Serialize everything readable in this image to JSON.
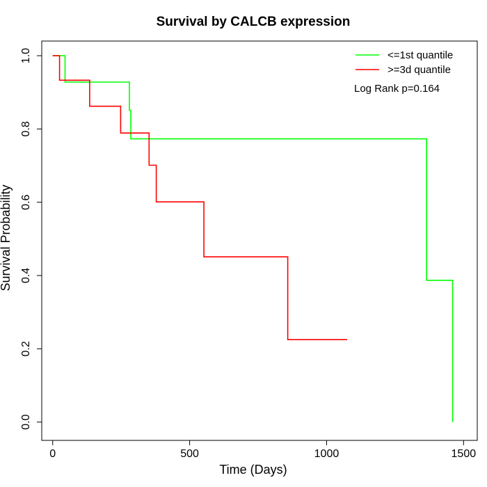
{
  "chart_data": {
    "type": "line",
    "title": "Survival by CALCB expression",
    "xlabel": "Time (Days)",
    "ylabel": "Survival Probability",
    "xlim": [
      -40,
      1550
    ],
    "ylim": [
      -0.05,
      1.04
    ],
    "x_ticks": [
      0,
      500,
      1000,
      1500
    ],
    "y_ticks": [
      0.0,
      0.2,
      0.4,
      0.6,
      0.8,
      1.0
    ],
    "x_tick_labels": [
      "0",
      "500",
      "1000",
      "1500"
    ],
    "y_tick_labels": [
      "0.0",
      "0.2",
      "0.4",
      "0.6",
      "0.8",
      "1.0"
    ],
    "legend_position": "top-right",
    "annotation": "Log Rank p=0.164",
    "series": [
      {
        "name": "<=1st quantile",
        "color": "#00ff00",
        "step_points": [
          [
            0,
            1.0
          ],
          [
            45,
            1.0
          ],
          [
            45,
            0.928
          ],
          [
            280,
            0.928
          ],
          [
            280,
            0.851
          ],
          [
            285,
            0.851
          ],
          [
            285,
            0.773
          ],
          [
            1365,
            0.773
          ],
          [
            1365,
            0.387
          ],
          [
            1460,
            0.387
          ],
          [
            1460,
            0.0
          ]
        ]
      },
      {
        "name": ">=3d quantile",
        "color": "#ff0000",
        "step_points": [
          [
            0,
            1.0
          ],
          [
            25,
            1.0
          ],
          [
            25,
            0.933
          ],
          [
            135,
            0.933
          ],
          [
            135,
            0.862
          ],
          [
            248,
            0.862
          ],
          [
            248,
            0.789
          ],
          [
            352,
            0.789
          ],
          [
            352,
            0.701
          ],
          [
            378,
            0.701
          ],
          [
            378,
            0.601
          ],
          [
            552,
            0.601
          ],
          [
            552,
            0.451
          ],
          [
            858,
            0.451
          ],
          [
            858,
            0.225
          ],
          [
            1075,
            0.225
          ]
        ]
      }
    ]
  }
}
